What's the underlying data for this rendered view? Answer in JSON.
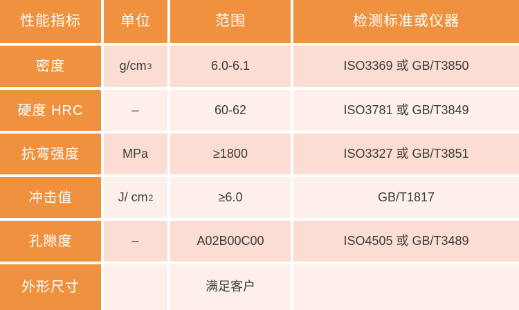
{
  "colors": {
    "accent": "#F0913F",
    "row-odd": "#FBDDD3",
    "row-even": "#FDF0EA",
    "gap": "#FFFFFF",
    "header-text": "#FFFFFF",
    "body-text": "#3C3C3C"
  },
  "table": {
    "columns": [
      "性能指标",
      "单位",
      "范围",
      "检测标准或仪器"
    ],
    "rows": [
      {
        "indicator": "密度",
        "unit": "g/cm",
        "unit_sup": "3",
        "range": "6.0-6.1",
        "standard": "ISO3369 或 GB/T3850"
      },
      {
        "indicator": "硬度 HRC",
        "unit": "–",
        "unit_sup": "",
        "range": "60-62",
        "standard": "ISO3781 或 GB/T3849"
      },
      {
        "indicator": "抗弯强度",
        "unit": "MPa",
        "unit_sup": "",
        "range": "≥1800",
        "standard": "ISO3327 或 GB/T3851"
      },
      {
        "indicator": "冲击值",
        "unit": "J/ cm",
        "unit_sup": "2",
        "range": "≥6.0",
        "standard": "GB/T1817"
      },
      {
        "indicator": "孔隙度",
        "unit": "–",
        "unit_sup": "",
        "range": "A02B00C00",
        "standard": "ISO4505 或 GB/T3489"
      },
      {
        "indicator": "外形尺寸",
        "unit": "",
        "unit_sup": "",
        "range": "满足客户",
        "standard": ""
      }
    ]
  },
  "chart_data": {
    "type": "table",
    "columns": [
      "性能指标",
      "单位",
      "范围",
      "检测标准或仪器"
    ],
    "rows": [
      [
        "密度",
        "g/cm³",
        "6.0-6.1",
        "ISO3369 或 GB/T3850"
      ],
      [
        "硬度 HRC",
        "–",
        "60-62",
        "ISO3781 或 GB/T3849"
      ],
      [
        "抗弯强度",
        "MPa",
        "≥1800",
        "ISO3327 或 GB/T3851"
      ],
      [
        "冲击值",
        "J/cm²",
        "≥6.0",
        "GB/T1817"
      ],
      [
        "孔隙度",
        "–",
        "A02B00C00",
        "ISO4505 或 GB/T3489"
      ],
      [
        "外形尺寸",
        "",
        "满足客户",
        ""
      ]
    ],
    "layout_hints": {
      "header_fill": "#F0913F",
      "first_column_fill": "#F0913F",
      "banding": [
        "#FBDDD3",
        "#FDF0EA"
      ],
      "grid": "4px white gutters"
    }
  }
}
